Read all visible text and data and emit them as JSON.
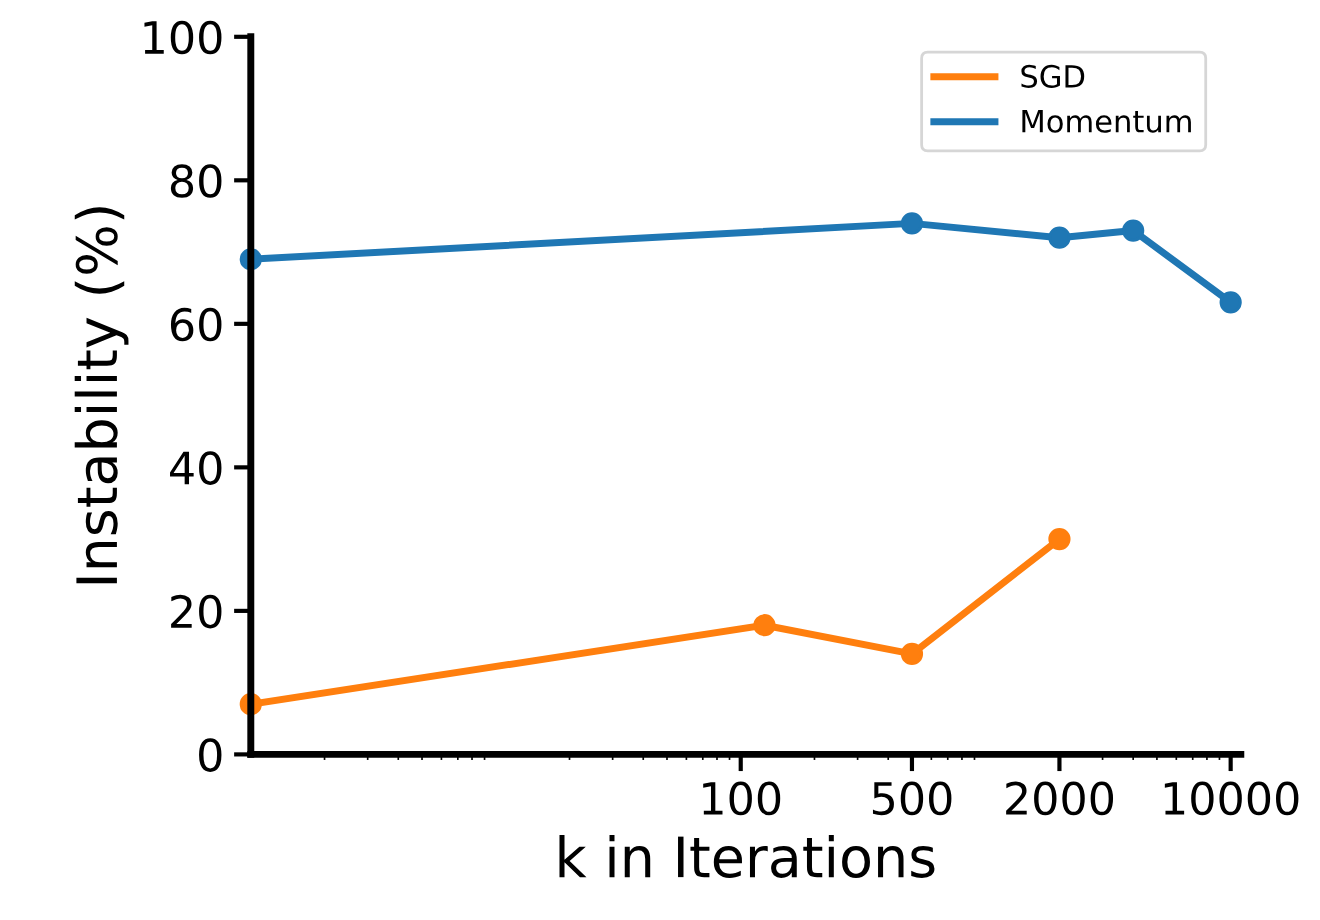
{
  "chart_data": {
    "type": "line",
    "xlabel": "k in Iterations",
    "ylabel": "Instability (%)",
    "log": "x",
    "xlim": [
      1,
      11000
    ],
    "xticks": [
      100,
      500,
      2000,
      10000
    ],
    "ylim": [
      0,
      100
    ],
    "yticks": [
      0,
      20,
      40,
      60,
      80,
      100
    ],
    "grid": false,
    "legend": "top right",
    "marker": "circle",
    "line_style": "solid",
    "series": [
      {
        "name": "SGD",
        "color": "#ff7f0e",
        "x": [
          1,
          125,
          500,
          2000
        ],
        "values": [
          7,
          18,
          14,
          30
        ]
      },
      {
        "name": "Momentum",
        "color": "#1f77b4",
        "x": [
          1,
          500,
          2000,
          4000,
          10000
        ],
        "values": [
          69,
          74,
          72,
          73,
          63
        ]
      }
    ]
  }
}
